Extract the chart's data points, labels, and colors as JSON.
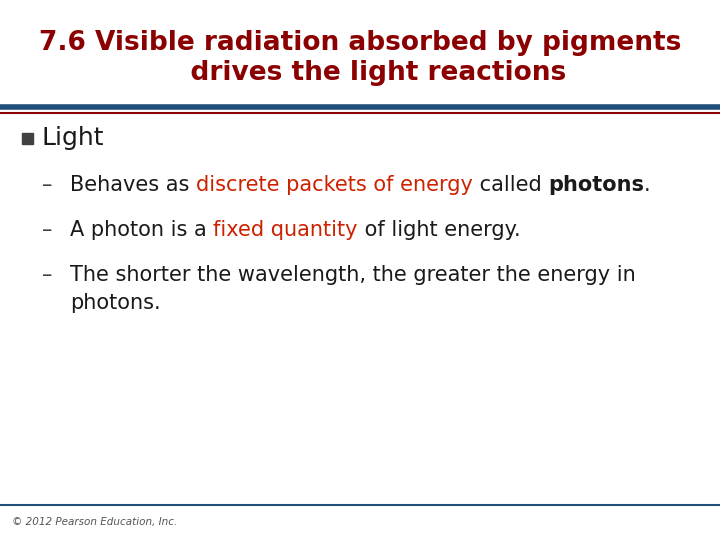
{
  "title_line1": "7.6 Visible radiation absorbed by pigments",
  "title_line2": "    drives the light reactions",
  "title_color": "#8B0000",
  "title_fontsize": 19,
  "bg_color": "#FFFFFF",
  "bullet_color": "#1A1A1A",
  "bullet_text": "Light",
  "bullet_square_color": "#404040",
  "bullet_fontsize": 18,
  "sub_bullet_dash_color": "#404040",
  "sub_bullet_fontsize": 15,
  "highlight_color": "#CC2200",
  "normal_color": "#1A1A1A",
  "separator_blue": "#1F4E79",
  "separator_red": "#8B0000",
  "footer_text": "© 2012 Pearson Education, Inc.",
  "footer_color": "#555555",
  "footer_fontsize": 7.5
}
